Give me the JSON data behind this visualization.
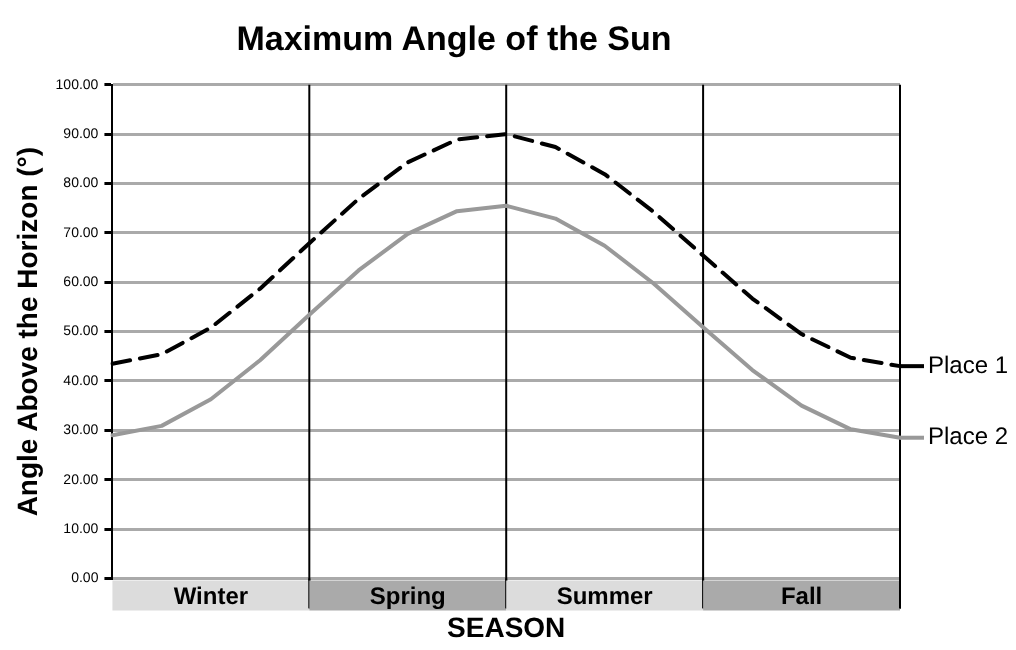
{
  "chart_data": {
    "type": "line",
    "title": "Maximum Angle of the Sun",
    "xlabel": "SEASON",
    "ylabel": "Angle Above the Horizon (°)",
    "ylim": [
      0,
      100
    ],
    "yticks": [
      {
        "value": 0,
        "label": "0.00"
      },
      {
        "value": 10,
        "label": "10.00"
      },
      {
        "value": 20,
        "label": "20.00"
      },
      {
        "value": 30,
        "label": "30.00"
      },
      {
        "value": 40,
        "label": "40.00"
      },
      {
        "value": 50,
        "label": "50.00"
      },
      {
        "value": 60,
        "label": "60.00"
      },
      {
        "value": 70,
        "label": "70.00"
      },
      {
        "value": 80,
        "label": "80.00"
      },
      {
        "value": 90,
        "label": "90.00"
      },
      {
        "value": 100,
        "label": "100.00"
      }
    ],
    "tick_labels": "y",
    "grid": true,
    "legend": "right",
    "marker": "none",
    "categories": [
      null,
      null,
      null,
      null,
      null,
      null,
      null,
      null,
      null,
      null,
      null,
      null,
      null,
      null,
      null,
      null,
      null
    ],
    "series": [
      {
        "name": "Place 1",
        "color": "#000000",
        "line_style": "dashed",
        "values": [
          43.5,
          45.4,
          50.8,
          58.7,
          67.9,
          76.9,
          84.3,
          88.9,
          90,
          87.4,
          81.9,
          74.2,
          65.4,
          56.7,
          49.5,
          44.7,
          43
        ]
      },
      {
        "name": "Place 2",
        "color": "#999999",
        "line_style": "solid",
        "values": [
          29,
          30.9,
          36.3,
          44.2,
          53.4,
          62.4,
          69.8,
          74.4,
          75.5,
          72.9,
          67.4,
          59.7,
          50.9,
          42.2,
          35,
          30.2,
          28.5
        ]
      }
    ],
    "annotations": [
      "Winter",
      "Spring",
      "Summer",
      "Fall"
    ]
  }
}
